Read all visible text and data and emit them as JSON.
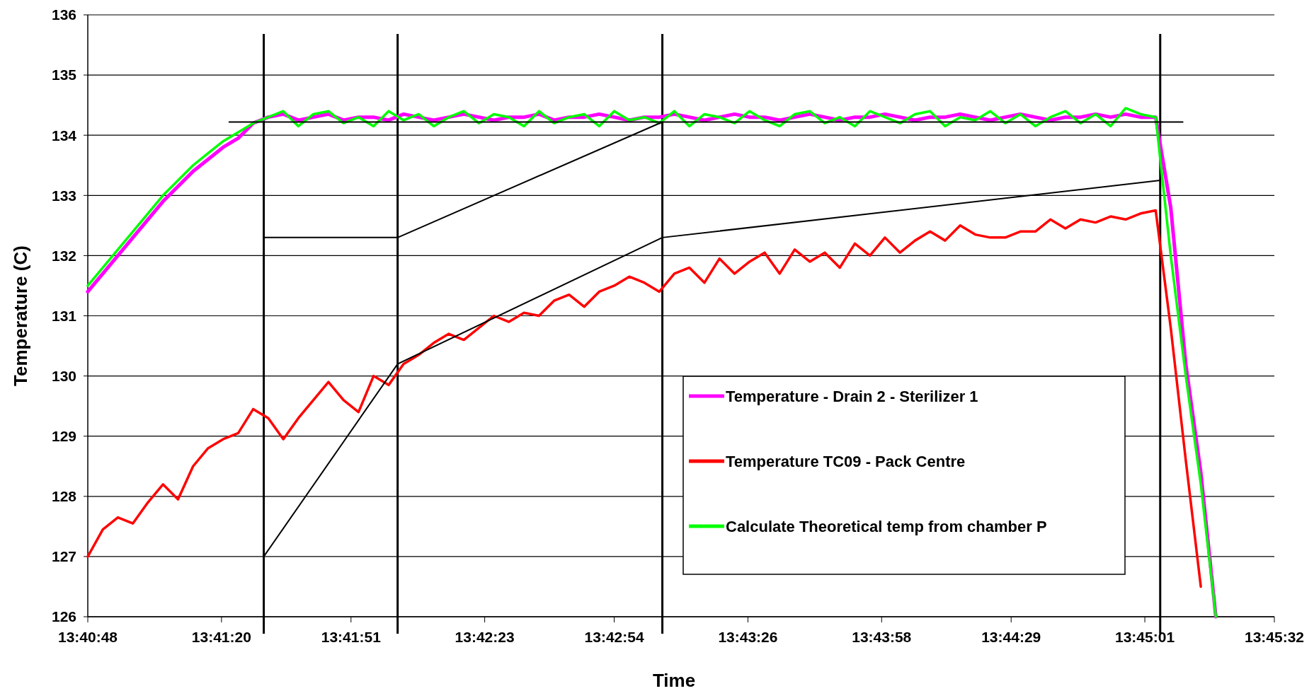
{
  "chart_data": {
    "type": "line",
    "xlabel": "Time",
    "ylabel": "Temperature (C)",
    "x": [
      13.68,
      13.681,
      13.682,
      13.683,
      13.684,
      13.685,
      13.686,
      13.687,
      13.688,
      13.689,
      13.69,
      13.691,
      13.692,
      13.693,
      13.694,
      13.695,
      13.696,
      13.697,
      13.698,
      13.699,
      13.7,
      13.701,
      13.702,
      13.703,
      13.704,
      13.705,
      13.706,
      13.707,
      13.708,
      13.709,
      13.71,
      13.711,
      13.712,
      13.713,
      13.714,
      13.715,
      13.716,
      13.717,
      13.718,
      13.719,
      13.72,
      13.721,
      13.722,
      13.723,
      13.724,
      13.725,
      13.726,
      13.727,
      13.728,
      13.729,
      13.73,
      13.731,
      13.732,
      13.733,
      13.734,
      13.735,
      13.736,
      13.737,
      13.738,
      13.739,
      13.74,
      13.741,
      13.742,
      13.743,
      13.744,
      13.745,
      13.746,
      13.747,
      13.748,
      13.749,
      13.75,
      13.751,
      13.752,
      13.753,
      13.754,
      13.755
    ],
    "series": [
      {
        "name": "Temperature - Drain 2 - Sterilizer 1",
        "color": "#ff00ff",
        "values": [
          131.4,
          131.7,
          132.0,
          132.3,
          132.6,
          132.9,
          133.15,
          133.4,
          133.6,
          133.8,
          133.95,
          134.2,
          134.3,
          134.35,
          134.25,
          134.3,
          134.35,
          134.25,
          134.3,
          134.3,
          134.25,
          134.35,
          134.3,
          134.25,
          134.3,
          134.35,
          134.3,
          134.25,
          134.3,
          134.3,
          134.35,
          134.25,
          134.3,
          134.3,
          134.35,
          134.3,
          134.25,
          134.3,
          134.3,
          134.35,
          134.3,
          134.25,
          134.3,
          134.35,
          134.3,
          134.3,
          134.25,
          134.3,
          134.35,
          134.3,
          134.25,
          134.3,
          134.3,
          134.35,
          134.3,
          134.25,
          134.3,
          134.3,
          134.35,
          134.3,
          134.25,
          134.3,
          134.35,
          134.3,
          134.25,
          134.3,
          134.3,
          134.35,
          134.3,
          134.35,
          134.3,
          134.3,
          132.8,
          130.2,
          128.4,
          126.0
        ]
      },
      {
        "name": "Temperature TC09 - Pack Centre",
        "color": "#ff0000",
        "values": [
          127.0,
          127.45,
          127.65,
          127.55,
          127.9,
          128.2,
          127.95,
          128.5,
          128.8,
          128.95,
          129.05,
          129.45,
          129.3,
          128.95,
          129.3,
          129.6,
          129.9,
          129.6,
          129.4,
          130.0,
          129.85,
          130.2,
          130.35,
          130.55,
          130.7,
          130.6,
          130.8,
          131.0,
          130.9,
          131.05,
          131.0,
          131.25,
          131.35,
          131.15,
          131.4,
          131.5,
          131.65,
          131.55,
          131.4,
          131.7,
          131.8,
          131.55,
          131.95,
          131.7,
          131.9,
          132.05,
          131.7,
          132.1,
          131.9,
          132.05,
          131.8,
          132.2,
          132.0,
          132.3,
          132.05,
          132.25,
          132.4,
          132.25,
          132.5,
          132.35,
          132.3,
          132.3,
          132.4,
          132.4,
          132.6,
          132.45,
          132.6,
          132.55,
          132.65,
          132.6,
          132.7,
          132.75,
          130.8,
          128.6,
          126.5,
          null
        ]
      },
      {
        "name": "Calculate Theoretical temp from chamber P",
        "color": "#00ff00",
        "values": [
          131.5,
          131.8,
          132.1,
          132.4,
          132.7,
          133.0,
          133.25,
          133.5,
          133.7,
          133.9,
          134.05,
          134.2,
          134.3,
          134.4,
          134.15,
          134.35,
          134.4,
          134.2,
          134.3,
          134.15,
          134.4,
          134.25,
          134.35,
          134.15,
          134.3,
          134.4,
          134.2,
          134.35,
          134.3,
          134.15,
          134.4,
          134.2,
          134.3,
          134.35,
          134.15,
          134.4,
          134.25,
          134.3,
          134.2,
          134.4,
          134.15,
          134.35,
          134.3,
          134.2,
          134.4,
          134.25,
          134.15,
          134.35,
          134.4,
          134.2,
          134.3,
          134.15,
          134.4,
          134.3,
          134.2,
          134.35,
          134.4,
          134.15,
          134.3,
          134.25,
          134.4,
          134.2,
          134.35,
          134.15,
          134.3,
          134.4,
          134.2,
          134.35,
          134.15,
          134.45,
          134.35,
          134.3,
          132.0,
          130.0,
          128.2,
          126.0
        ]
      },
      {
        "color": "#000000",
        "x": [
          13.6894,
          13.7528
        ],
        "values": [
          134.22,
          134.22
        ]
      },
      {
        "color": "#000000",
        "x": [
          13.6917,
          13.7006,
          13.7182
        ],
        "values": [
          132.3,
          132.3,
          134.22
        ]
      },
      {
        "color": "#000000",
        "x": [
          13.6917,
          13.7006,
          13.7182,
          13.7513
        ],
        "values": [
          127.0,
          130.2,
          132.3,
          133.25
        ]
      }
    ],
    "ref_lines": [
      {
        "axis": "x",
        "value": 13.6917,
        "color": "#000000"
      },
      {
        "axis": "x",
        "value": 13.7006,
        "color": "#000000"
      },
      {
        "axis": "x",
        "value": 13.7182,
        "color": "#000000"
      },
      {
        "axis": "x",
        "value": 13.7513,
        "color": "#000000"
      }
    ],
    "xlim": [
      13.68,
      13.758889
    ],
    "xticks": [
      {
        "value": 13.68,
        "label": "13:40:48"
      },
      {
        "value": 13.688889,
        "label": "13:41:20"
      },
      {
        "value": 13.6975,
        "label": "13:41:51"
      },
      {
        "value": 13.706389,
        "label": "13:42:23"
      },
      {
        "value": 13.715,
        "label": "13:42:54"
      },
      {
        "value": 13.723889,
        "label": "13:43:26"
      },
      {
        "value": 13.732778,
        "label": "13:43:58"
      },
      {
        "value": 13.741389,
        "label": "13:44:29"
      },
      {
        "value": 13.750278,
        "label": "13:45:01"
      },
      {
        "value": 13.758889,
        "label": "13:45:32"
      }
    ],
    "ylim": [
      126,
      136
    ],
    "yticks": [
      126,
      127,
      128,
      129,
      130,
      131,
      132,
      133,
      134,
      135,
      136
    ],
    "grid": "y",
    "legend": "bottom right"
  }
}
